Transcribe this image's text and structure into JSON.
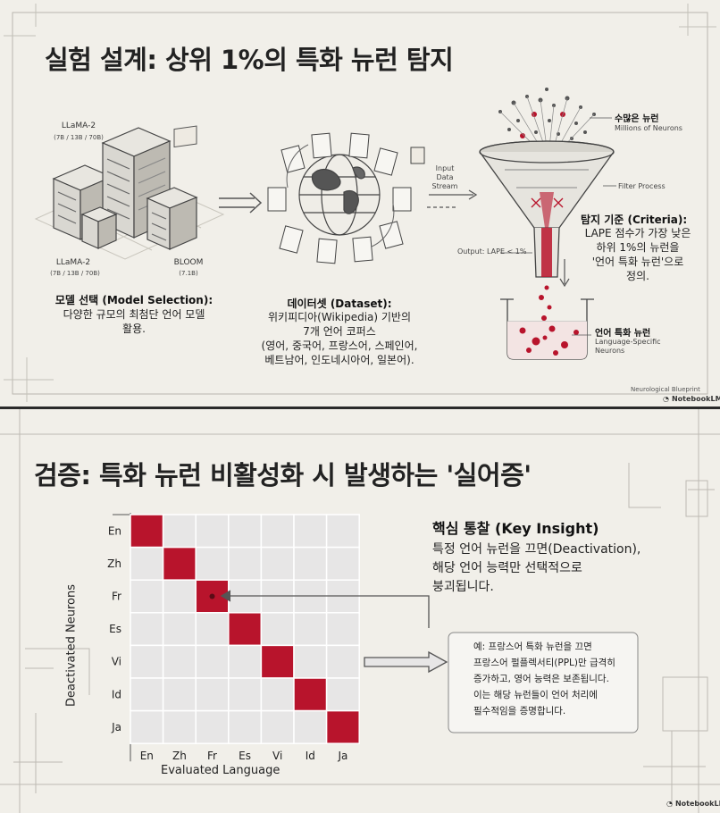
{
  "slide1": {
    "title": "실험 설계: 상위 1%의 특화 뉴런 탐지",
    "servers": {
      "llama_top": "LLaMA-2",
      "llama_top_sizes": "(7B / 13B / 70B)",
      "llama_bottom": "LLaMA-2",
      "llama_bottom_sizes": "(7B / 13B / 70B)",
      "bloom": "BLOOM",
      "bloom_size": "(7.1B)"
    },
    "model_selection": {
      "heading": "모델 선택 (Model Selection):",
      "line1": "다양한 규모의 최첨단 언어 모델",
      "line2": "활용."
    },
    "dataset": {
      "heading": "데이터셋 (Dataset):",
      "line1": "위키피디아(Wikipedia) 기반의",
      "line2": "7개 언어 코퍼스",
      "line3": "(영어, 중국어, 프랑스어, 스페인어,",
      "line4": "베트남어, 인도네시아어, 일본어)."
    },
    "funnel": {
      "input_line1": "Input",
      "input_line2": "Data",
      "input_line3": "Stream",
      "neurons_heading": "수많은 뉴런",
      "neurons_sub": "Millions of Neurons",
      "filter": "Filter Process",
      "output": "Output: LAPE < 1%",
      "criteria_heading": "탐지 기준 (Criteria):",
      "criteria_line1": "LAPE 점수가 가장 낮은",
      "criteria_line2": "하위 1%의 뉴런을",
      "criteria_line3": "'언어 특화 뉴런'으로",
      "criteria_line4": "정의.",
      "specific_heading": "언어 특화 뉴런",
      "specific_sub1": "Language-Specific",
      "specific_sub2": "Neurons"
    },
    "footer_note": "Neurological Blueprint",
    "brand": "NotebookLM"
  },
  "slide2": {
    "title": "검증: 특화 뉴런 비활성화 시 발생하는 '실어증'",
    "insight": {
      "heading": "핵심 통찰 (Key Insight)",
      "line1": "특정 언어 뉴런을 끄면(Deactivation),",
      "line2": "해당 언어 능력만 선택적으로",
      "line3": "붕괴됩니다."
    },
    "example": {
      "line1": "예: 프랑스어 특화 뉴런을 끄면",
      "line2": "프랑스어 펄플렉서티(PPL)만 급격히",
      "line3": "증가하고, 영어 능력은 보존됩니다.",
      "line4": "이는 해당 뉴런들이 언어 처리에",
      "line5": "필수적임을 증명합니다."
    },
    "brand": "NotebookLM"
  },
  "chart_data": {
    "type": "heatmap",
    "xlabel": "Evaluated Language",
    "ylabel": "Deactivated Neurons",
    "x_categories": [
      "En",
      "Zh",
      "Fr",
      "Es",
      "Vi",
      "Id",
      "Ja"
    ],
    "y_categories": [
      "En",
      "Zh",
      "Fr",
      "Es",
      "Vi",
      "Id",
      "Ja"
    ],
    "highlighted_cells": [
      {
        "x": "En",
        "y": "En"
      },
      {
        "x": "Zh",
        "y": "Zh"
      },
      {
        "x": "Fr",
        "y": "Fr"
      },
      {
        "x": "Es",
        "y": "Es"
      },
      {
        "x": "Vi",
        "y": "Vi"
      },
      {
        "x": "Id",
        "y": "Id"
      },
      {
        "x": "Ja",
        "y": "Ja"
      }
    ],
    "colors": {
      "highlight": "#b8142c",
      "cell": "#e7e6e6",
      "grid": "#ffffff"
    }
  }
}
